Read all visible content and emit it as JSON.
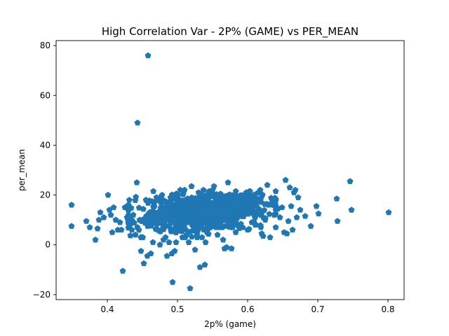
{
  "chart_data": {
    "type": "scatter",
    "title": "High Correlation Var - 2P% (GAME) vs PER_MEAN",
    "xlabel": "2p% (game)",
    "ylabel": "per_mean",
    "xlim": [
      0.327,
      0.823
    ],
    "ylim": [
      -22.0,
      82.0
    ],
    "x_ticks": [
      0.4,
      0.5,
      0.6,
      0.7,
      0.8
    ],
    "x_tick_labels": [
      "0.4",
      "0.5",
      "0.6",
      "0.7",
      "0.8"
    ],
    "y_ticks": [
      -20,
      0,
      20,
      40,
      60,
      80
    ],
    "y_tick_labels": [
      "−20",
      "0",
      "20",
      "40",
      "60",
      "80"
    ],
    "grid": false,
    "marker": "pentagon",
    "color": "#1f77b4",
    "cluster_sample_count": 900,
    "points": [
      [
        0.349,
        16.0
      ],
      [
        0.349,
        7.5
      ],
      [
        0.37,
        9.5
      ],
      [
        0.375,
        7.0
      ],
      [
        0.383,
        2.0
      ],
      [
        0.386,
        6.5
      ],
      [
        0.39,
        13.0
      ],
      [
        0.388,
        10.0
      ],
      [
        0.395,
        11.0
      ],
      [
        0.401,
        20.0
      ],
      [
        0.403,
        14.0
      ],
      [
        0.405,
        12.0
      ],
      [
        0.407,
        5.0
      ],
      [
        0.409,
        15.0
      ],
      [
        0.412,
        10.0
      ],
      [
        0.415,
        6.0
      ],
      [
        0.418,
        9.0
      ],
      [
        0.42,
        6.0
      ],
      [
        0.422,
        -10.5
      ],
      [
        0.425,
        15.0
      ],
      [
        0.428,
        11.0
      ],
      [
        0.43,
        16.0
      ],
      [
        0.432,
        8.0
      ],
      [
        0.435,
        6.0
      ],
      [
        0.437,
        12.0
      ],
      [
        0.44,
        4.0
      ],
      [
        0.442,
        25.0
      ],
      [
        0.443,
        49.0
      ],
      [
        0.446,
        10.0
      ],
      [
        0.448,
        -2.5
      ],
      [
        0.45,
        3.0
      ],
      [
        0.452,
        -7.5
      ],
      [
        0.455,
        18.0
      ],
      [
        0.457,
        -4.5
      ],
      [
        0.458,
        76.0
      ],
      [
        0.462,
        -3.5
      ],
      [
        0.465,
        1.0
      ],
      [
        0.467,
        17.0
      ],
      [
        0.47,
        19.0
      ],
      [
        0.472,
        6.0
      ],
      [
        0.475,
        0.0
      ],
      [
        0.478,
        20.0
      ],
      [
        0.48,
        2.0
      ],
      [
        0.483,
        3.0
      ],
      [
        0.485,
        -4.5
      ],
      [
        0.488,
        1.0
      ],
      [
        0.49,
        19.0
      ],
      [
        0.492,
        -3.5
      ],
      [
        0.493,
        -15.0
      ],
      [
        0.496,
        -2.5
      ],
      [
        0.498,
        1.0
      ],
      [
        0.501,
        20.0
      ],
      [
        0.504,
        22.0
      ],
      [
        0.507,
        3.0
      ],
      [
        0.51,
        22.0
      ],
      [
        0.513,
        4.0
      ],
      [
        0.516,
        1.0
      ],
      [
        0.518,
        -17.5
      ],
      [
        0.52,
        23.5
      ],
      [
        0.523,
        6.0
      ],
      [
        0.525,
        -2.0
      ],
      [
        0.528,
        4.0
      ],
      [
        0.53,
        21.0
      ],
      [
        0.532,
        -9.0
      ],
      [
        0.535,
        3.0
      ],
      [
        0.537,
        22.0
      ],
      [
        0.539,
        -8.0
      ],
      [
        0.54,
        1.0
      ],
      [
        0.542,
        5.0
      ],
      [
        0.545,
        21.0
      ],
      [
        0.547,
        7.0
      ],
      [
        0.55,
        22.0
      ],
      [
        0.552,
        23.5
      ],
      [
        0.555,
        7.0
      ],
      [
        0.557,
        4.0
      ],
      [
        0.56,
        20.0
      ],
      [
        0.563,
        7.0
      ],
      [
        0.565,
        2.0
      ],
      [
        0.567,
        -1.5
      ],
      [
        0.57,
        -1.0
      ],
      [
        0.572,
        25.0
      ],
      [
        0.575,
        20.0
      ],
      [
        0.577,
        -1.5
      ],
      [
        0.58,
        8.0
      ],
      [
        0.583,
        5.0
      ],
      [
        0.585,
        19.0
      ],
      [
        0.588,
        12.0
      ],
      [
        0.59,
        17.0
      ],
      [
        0.593,
        7.0
      ],
      [
        0.595,
        20.0
      ],
      [
        0.598,
        21.0
      ],
      [
        0.6,
        6.0
      ],
      [
        0.603,
        16.0
      ],
      [
        0.606,
        9.0
      ],
      [
        0.609,
        20.0
      ],
      [
        0.612,
        13.0
      ],
      [
        0.615,
        21.0
      ],
      [
        0.618,
        22.0
      ],
      [
        0.62,
        4.5
      ],
      [
        0.622,
        3.5
      ],
      [
        0.625,
        10.0
      ],
      [
        0.628,
        24.0
      ],
      [
        0.63,
        16.0
      ],
      [
        0.632,
        3.0
      ],
      [
        0.635,
        17.0
      ],
      [
        0.638,
        12.0
      ],
      [
        0.64,
        7.0
      ],
      [
        0.643,
        14.5
      ],
      [
        0.646,
        11.0
      ],
      [
        0.649,
        15.0
      ],
      [
        0.652,
        5.0
      ],
      [
        0.654,
        26.0
      ],
      [
        0.656,
        4.5
      ],
      [
        0.658,
        9.5
      ],
      [
        0.66,
        23.0
      ],
      [
        0.662,
        15.5
      ],
      [
        0.664,
        6.0
      ],
      [
        0.666,
        21.0
      ],
      [
        0.668,
        22.0
      ],
      [
        0.67,
        11.0
      ],
      [
        0.672,
        19.0
      ],
      [
        0.675,
        14.0
      ],
      [
        0.682,
        11.5
      ],
      [
        0.69,
        7.5
      ],
      [
        0.698,
        15.5
      ],
      [
        0.701,
        12.5
      ],
      [
        0.727,
        18.5
      ],
      [
        0.728,
        9.5
      ],
      [
        0.746,
        25.5
      ],
      [
        0.748,
        14.0
      ],
      [
        0.801,
        13.0
      ]
    ]
  }
}
